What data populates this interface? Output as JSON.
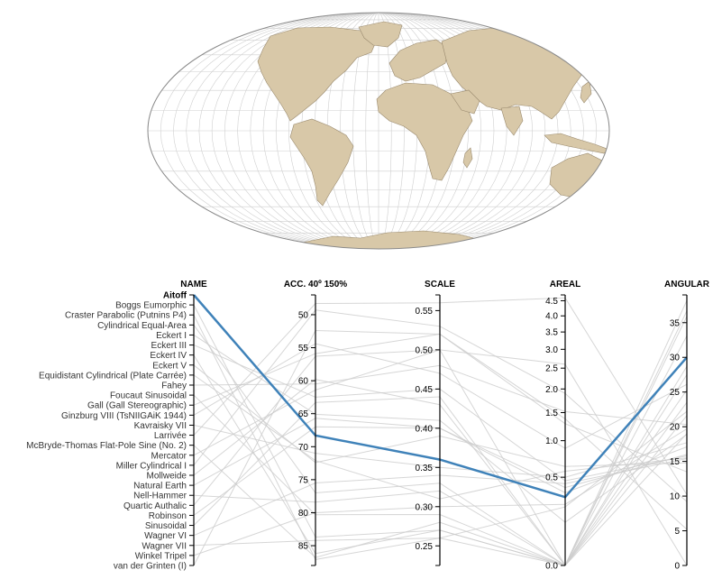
{
  "map": {
    "projection_name": "Aitoff",
    "colors": {
      "land": "#d8c8a8",
      "graticule": "#cfcfcf",
      "highlight": "#3f82b9",
      "context": "#cccccc"
    }
  },
  "chart_data": {
    "type": "parallel-coordinates",
    "axes": [
      {
        "key": "name",
        "label": "NAME",
        "kind": "categorical"
      },
      {
        "key": "acc",
        "label": "ACC. 40º 150%",
        "kind": "numeric",
        "range": [
          47,
          88
        ],
        "inverted": true,
        "ticks": [
          "50",
          "55",
          "60",
          "65",
          "70",
          "75",
          "80",
          "85"
        ]
      },
      {
        "key": "scale",
        "label": "SCALE",
        "kind": "numeric",
        "range": [
          0.225,
          0.57
        ],
        "ticks": [
          "0.25",
          "0.30",
          "0.35",
          "0.40",
          "0.45",
          "0.50",
          "0.55"
        ]
      },
      {
        "key": "areal",
        "label": "AREAL",
        "kind": "sqrt",
        "range": [
          0,
          4.7
        ],
        "ticks": [
          "0.0",
          "0.5",
          "1.0",
          "1.5",
          "2.0",
          "2.5",
          "3.0",
          "3.5",
          "4.0",
          "4.5"
        ]
      },
      {
        "key": "angular",
        "label": "ANGULAR",
        "kind": "numeric",
        "range": [
          0,
          39
        ],
        "ticks": [
          "0",
          "5",
          "10",
          "15",
          "20",
          "25",
          "30",
          "35"
        ]
      }
    ],
    "selected": "Aitoff",
    "projections": [
      {
        "name": "Aitoff",
        "acc": 68.3,
        "scale": 0.36,
        "areal": 0.3,
        "angular": 30.0
      },
      {
        "name": "Boggs Eumorphic",
        "acc": 83.7,
        "scale": 0.27,
        "areal": 0.0,
        "angular": 27.5
      },
      {
        "name": "Craster Parabolic (Putnins P4)",
        "acc": 87.1,
        "scale": 0.26,
        "areal": 0.0,
        "angular": 35.9
      },
      {
        "name": "Cylindrical Equal-Area",
        "acc": 77.0,
        "scale": 0.33,
        "areal": 0.0,
        "angular": 19.0
      },
      {
        "name": "Eckert I",
        "acc": 65.1,
        "scale": 0.41,
        "areal": 0.12,
        "angular": 18.9
      },
      {
        "name": "Eckert III",
        "acc": 62.5,
        "scale": 0.45,
        "areal": 0.46,
        "angular": 15.8
      },
      {
        "name": "Eckert IV",
        "acc": 86.2,
        "scale": 0.27,
        "areal": 0.0,
        "angular": 28.7
      },
      {
        "name": "Eckert V",
        "acc": 72.4,
        "scale": 0.39,
        "areal": 0.63,
        "angular": 14.8
      },
      {
        "name": "Equidistant Cylindrical (Plate Carrée)",
        "acc": 72.1,
        "scale": 0.31,
        "areal": 0.57,
        "angular": 15.5
      },
      {
        "name": "Fahey",
        "acc": 60.5,
        "scale": 0.48,
        "areal": 1.52,
        "angular": 20.3
      },
      {
        "name": "Foucaut Sinusoidal",
        "acc": 80.3,
        "scale": 0.29,
        "areal": 0.0,
        "angular": 38.2
      },
      {
        "name": "Gall (Gall Stereographic)",
        "acc": 55.9,
        "scale": 0.52,
        "areal": 1.29,
        "angular": 13.5
      },
      {
        "name": "Ginzburg VIII (TsNIIGAiK 1944)",
        "acc": 54.4,
        "scale": 0.47,
        "areal": 0.88,
        "angular": 26.1
      },
      {
        "name": "Kavraisky VII",
        "acc": 71.0,
        "scale": 0.35,
        "areal": 0.5,
        "angular": 17.7
      },
      {
        "name": "Larrivée",
        "acc": 48.3,
        "scale": 0.56,
        "areal": 4.6,
        "angular": 10.2
      },
      {
        "name": "McBryde-Thomas Flat-Pole Sine (No. 2)",
        "acc": 86.8,
        "scale": 0.28,
        "areal": 0.0,
        "angular": 33.1
      },
      {
        "name": "Mercator",
        "acc": 61.4,
        "scale": 0.5,
        "areal": 2.6,
        "angular": 0.0
      },
      {
        "name": "Miller Cylindrical I",
        "acc": 49.3,
        "scale": 0.53,
        "areal": 1.9,
        "angular": 9.2
      },
      {
        "name": "Mollweide",
        "acc": 59.8,
        "scale": 0.43,
        "areal": 0.0,
        "angular": 23.5
      },
      {
        "name": "Natural Earth",
        "acc": 65.7,
        "scale": 0.4,
        "areal": 0.34,
        "angular": 17.1
      },
      {
        "name": "Nell-Hammer",
        "acc": 78.4,
        "scale": 0.32,
        "areal": 0.0,
        "angular": 25.3
      },
      {
        "name": "Quartic Authalic",
        "acc": 56.3,
        "scale": 0.5,
        "areal": 0.0,
        "angular": 36.7
      },
      {
        "name": "Robinson",
        "acc": 67.0,
        "scale": 0.4,
        "areal": 0.39,
        "angular": 16.0
      },
      {
        "name": "Sinusoidal",
        "acc": 63.3,
        "scale": 0.44,
        "areal": 0.0,
        "angular": 21.6
      },
      {
        "name": "Wagner VI",
        "acc": 75.5,
        "scale": 0.34,
        "areal": 0.43,
        "angular": 15.4
      },
      {
        "name": "Wagner VII",
        "acc": 84.2,
        "scale": 0.26,
        "areal": 0.22,
        "angular": 22.2
      },
      {
        "name": "Winkel Tripel",
        "acc": 80.0,
        "scale": 0.3,
        "areal": 0.24,
        "angular": 19.7
      },
      {
        "name": "van der Grinten (I)",
        "acc": 52.4,
        "scale": 0.52,
        "areal": 1.38,
        "angular": 5.2
      }
    ]
  }
}
